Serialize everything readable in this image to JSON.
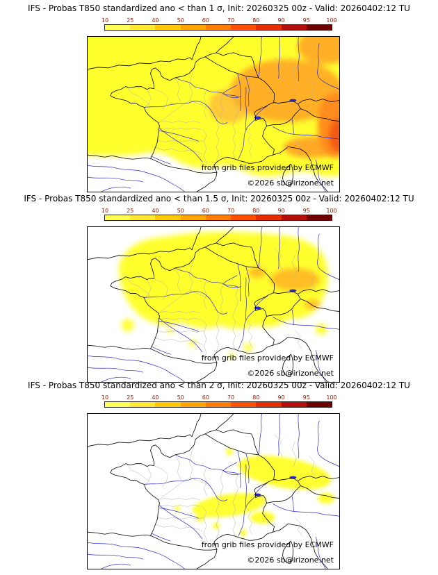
{
  "colorbar": {
    "ticks": [
      "10",
      "25",
      "40",
      "50",
      "60",
      "70",
      "80",
      "90",
      "95",
      "100"
    ],
    "colors": [
      "#ffff55",
      "#ffe733",
      "#ffc90a",
      "#ffa500",
      "#ff7d00",
      "#ff4f00",
      "#e62d00",
      "#b40f0a",
      "#6e0000"
    ]
  },
  "panels": [
    {
      "id": "sigma-1",
      "title": "IFS - Probas T850  standardized ano < than 1 σ, Init: 20260325 00z - Valid: 20260402:12 TU",
      "attribution": "from grib files provided by ECMWF",
      "copyright": "©2026 sb@irizone.net"
    },
    {
      "id": "sigma-1-5",
      "title": "IFS - Probas T850  standardized ano < than 1.5 σ, Init: 20260325 00z - Valid: 20260402:12 TU",
      "attribution": "from grib files provided by ECMWF",
      "copyright": "©2026 sb@irizone.net"
    },
    {
      "id": "sigma-2",
      "title": "IFS - Probas T850  standardized ano < than 2 σ, Init: 20260325 00z - Valid: 20260402:12 TU",
      "attribution": "from grib files provided by ECMWF",
      "copyright": "©2026 sb@irizone.net"
    }
  ]
}
